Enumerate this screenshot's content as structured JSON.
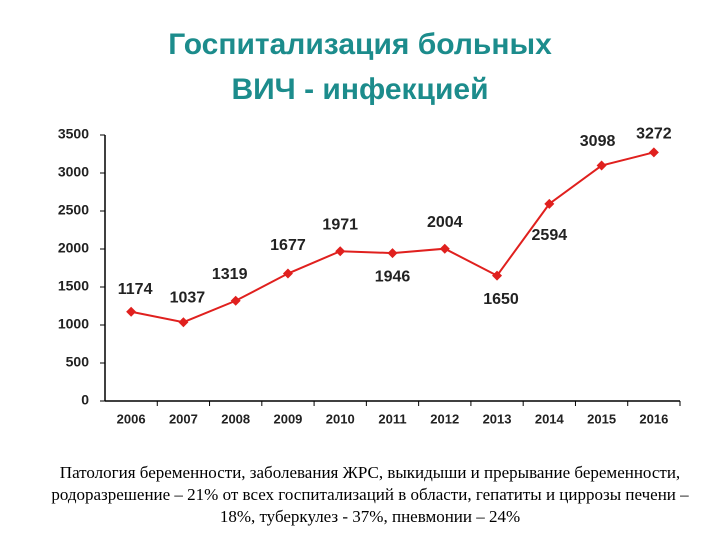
{
  "chart_data": {
    "type": "line",
    "title": "Госпитализация больных ВИЧ - инфекцией",
    "categories": [
      "2006",
      "2007",
      "2008",
      "2009",
      "2010",
      "2011",
      "2012",
      "2013",
      "2014",
      "2015",
      "2016"
    ],
    "values": [
      1174,
      1037,
      1319,
      1677,
      1971,
      1946,
      2004,
      1650,
      2594,
      3098,
      3272
    ],
    "color": "#e0201e",
    "ylim": [
      0,
      3500
    ],
    "yticks": [
      0,
      500,
      1000,
      1500,
      2000,
      2500,
      3000,
      3500
    ],
    "grid": false,
    "caption": "Патология беременности, заболевания ЖРС, выкидыши и прерывание беременности, родоразрешение – 21% от всех госпитализаций в области, гепатиты и циррозы печени – 18%, туберкулез - 37%, пневмонии – 24%"
  }
}
